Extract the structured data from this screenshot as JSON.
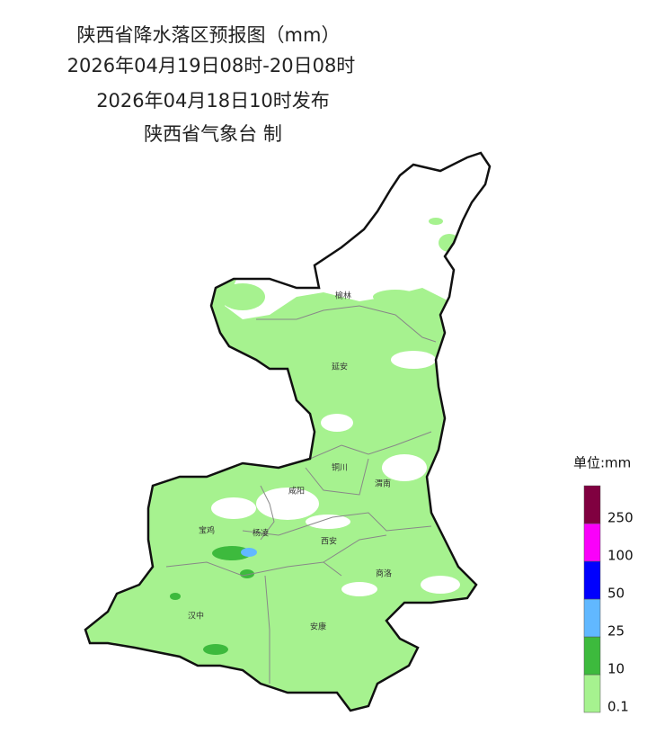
{
  "header": {
    "title": "陕西省降水落区预报图（mm）",
    "period": "2026年04月19日08时-20日08时",
    "issued": "2026年04月18日10时发布",
    "issuer": "陕西省气象台 制"
  },
  "cities": [
    "榆林",
    "延安",
    "铜川",
    "渭南",
    "咸阳",
    "宝鸡",
    "杨凌",
    "西安",
    "商洛",
    "汉中",
    "安康"
  ],
  "legend": {
    "title": "单位:mm",
    "ticks": [
      0.1,
      10,
      25,
      50,
      100,
      250
    ],
    "colors": [
      "#a6f28f",
      "#3dba3d",
      "#61b8ff",
      "#0000fe",
      "#fa00fa",
      "#800040"
    ]
  }
}
